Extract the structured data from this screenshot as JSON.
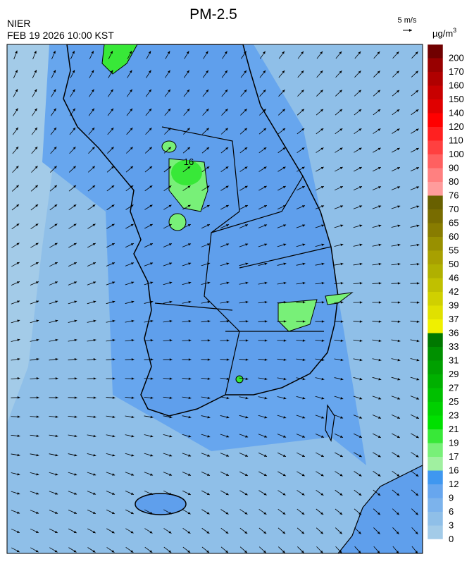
{
  "header": {
    "agency": "NIER",
    "datetime": "FEB 19 2026 10:00 KST",
    "title": "PM-2.5",
    "wind_scale": "5 m/s",
    "unit": {
      "base": "µg/m",
      "exponent": "3"
    }
  },
  "map": {
    "labels": [
      "16"
    ]
  },
  "legend": {
    "levels": [
      0,
      3,
      6,
      9,
      12,
      16,
      17,
      19,
      21,
      23,
      25,
      27,
      29,
      31,
      33,
      36,
      37,
      39,
      42,
      46,
      50,
      55,
      60,
      65,
      70,
      76,
      80,
      90,
      100,
      110,
      120,
      140,
      150,
      160,
      170,
      200
    ],
    "colors": [
      "#a3cbe8",
      "#8fbfe8",
      "#7cb3ec",
      "#67a6ee",
      "#3f97f0",
      "#a0f0a0",
      "#78f078",
      "#38e838",
      "#00e000",
      "#00d000",
      "#00c000",
      "#00b000",
      "#00a000",
      "#009000",
      "#007800",
      "#f0f000",
      "#e0e000",
      "#d0d000",
      "#c0c000",
      "#b0b000",
      "#a8a000",
      "#989000",
      "#887c00",
      "#786c00",
      "#686000",
      "#ff9c9c",
      "#ff8080",
      "#ff6060",
      "#ff4040",
      "#ff2020",
      "#ff0000",
      "#e00000",
      "#c80000",
      "#b00000",
      "#980000",
      "#700000"
    ]
  }
}
